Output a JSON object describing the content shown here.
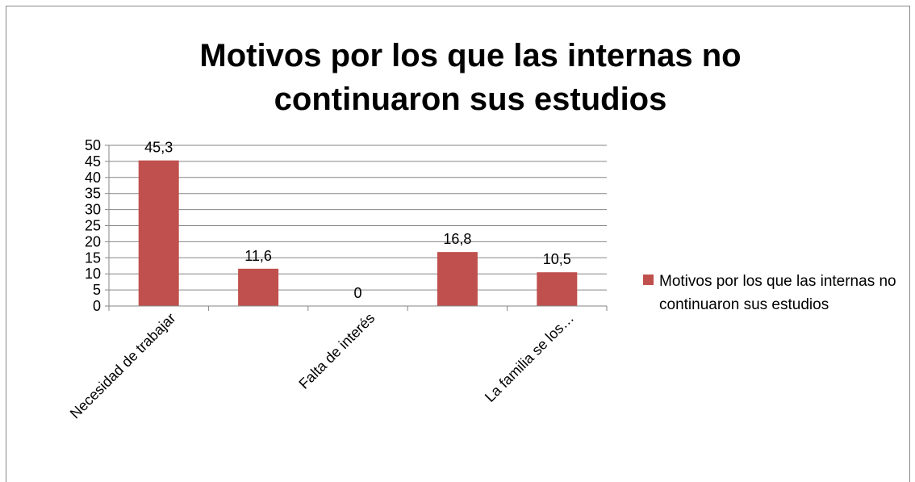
{
  "chart_data": {
    "type": "bar",
    "title": "Motivos por los que las internas no continuaron sus estudios",
    "categories": [
      "Necesidad de trabajar",
      null,
      "Falta de interés",
      null,
      "La familia se los…"
    ],
    "series": [
      {
        "name": "Motivos por los que las internas no continuaron sus estudios",
        "color": "#c0504d",
        "values": [
          45.3,
          11.6,
          0,
          16.8,
          10.5
        ],
        "value_labels": [
          "45,3",
          "11,6",
          "0",
          "16,8",
          "10,5"
        ]
      }
    ],
    "ylim": [
      0,
      50
    ],
    "yticks": [
      0,
      5,
      10,
      15,
      20,
      25,
      30,
      35,
      40,
      45,
      50
    ],
    "grid": true,
    "legend": "right"
  }
}
